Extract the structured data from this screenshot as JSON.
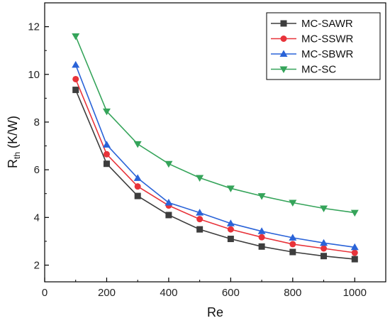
{
  "chart_data": {
    "type": "line",
    "xlabel": "Re",
    "ylabel_main": "R",
    "ylabel_sub": "th",
    "ylabel_unit": " (K/W)",
    "x": [
      100,
      200,
      300,
      400,
      500,
      600,
      700,
      800,
      900,
      1000
    ],
    "xlim": [
      0,
      1100
    ],
    "ylim": [
      1.3,
      13.0
    ],
    "xticks": [
      0,
      200,
      400,
      600,
      800,
      1000
    ],
    "yticks": [
      2,
      4,
      6,
      8,
      10,
      12
    ],
    "grid": false,
    "legend_position": "top-right",
    "series": [
      {
        "name": "MC-SAWR",
        "color": "#3d3d3d",
        "marker": "square",
        "values": [
          9.35,
          6.25,
          4.9,
          4.1,
          3.5,
          3.1,
          2.78,
          2.55,
          2.38,
          2.25
        ]
      },
      {
        "name": "MC-SSWR",
        "color": "#e8333a",
        "marker": "circle",
        "values": [
          9.8,
          6.65,
          5.3,
          4.5,
          3.93,
          3.5,
          3.17,
          2.88,
          2.7,
          2.52
        ]
      },
      {
        "name": "MC-SBWR",
        "color": "#2a63d8",
        "marker": "triangle-up",
        "values": [
          10.4,
          7.05,
          5.65,
          4.62,
          4.2,
          3.75,
          3.42,
          3.15,
          2.93,
          2.75
        ]
      },
      {
        "name": "MC-SC",
        "color": "#35a45a",
        "marker": "triangle-down",
        "values": [
          11.6,
          8.45,
          7.08,
          6.25,
          5.66,
          5.22,
          4.9,
          4.62,
          4.38,
          4.2
        ]
      }
    ]
  }
}
